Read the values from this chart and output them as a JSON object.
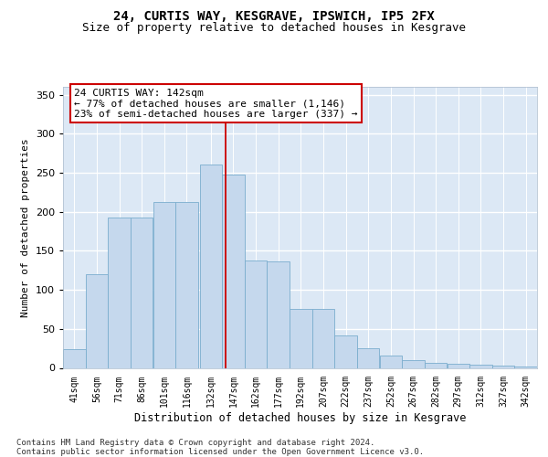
{
  "title1": "24, CURTIS WAY, KESGRAVE, IPSWICH, IP5 2FX",
  "title2": "Size of property relative to detached houses in Kesgrave",
  "xlabel": "Distribution of detached houses by size in Kesgrave",
  "ylabel": "Number of detached properties",
  "categories": [
    "41sqm",
    "56sqm",
    "71sqm",
    "86sqm",
    "101sqm",
    "116sqm",
    "132sqm",
    "147sqm",
    "162sqm",
    "177sqm",
    "192sqm",
    "207sqm",
    "222sqm",
    "237sqm",
    "252sqm",
    "267sqm",
    "282sqm",
    "297sqm",
    "312sqm",
    "327sqm",
    "342sqm"
  ],
  "cat_positions": [
    41,
    56,
    71,
    86,
    101,
    116,
    132,
    147,
    162,
    177,
    192,
    207,
    222,
    237,
    252,
    267,
    282,
    297,
    312,
    327,
    342
  ],
  "hist_values": [
    24,
    120,
    193,
    193,
    213,
    213,
    260,
    248,
    137,
    136,
    75,
    75,
    42,
    25,
    16,
    10,
    6,
    5,
    4,
    3,
    2
  ],
  "bar_color": "#c5d8ed",
  "bar_edge_color": "#7aadce",
  "vline_x_pos": 7,
  "vline_color": "#cc0000",
  "annotation_text": "24 CURTIS WAY: 142sqm\n← 77% of detached houses are smaller (1,146)\n23% of semi-detached houses are larger (337) →",
  "annotation_box_edgecolor": "#cc0000",
  "ylim": [
    0,
    360
  ],
  "yticks": [
    0,
    50,
    100,
    150,
    200,
    250,
    300,
    350
  ],
  "background_color": "#dce8f5",
  "grid_color": "#ffffff",
  "footer": "Contains HM Land Registry data © Crown copyright and database right 2024.\nContains public sector information licensed under the Open Government Licence v3.0.",
  "title1_fontsize": 10,
  "title2_fontsize": 9,
  "xlabel_fontsize": 8.5,
  "ylabel_fontsize": 8,
  "annotation_fontsize": 8,
  "tick_fontsize": 7,
  "ytick_fontsize": 8,
  "footer_fontsize": 6.5
}
